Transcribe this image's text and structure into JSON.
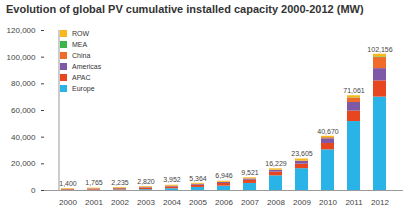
{
  "chart_data": {
    "type": "bar",
    "title": "Evolution of global PV cumulative installed capacity 2000-2012 (MW)",
    "stacked": true,
    "legend": "top-left",
    "grid": false,
    "categories": [
      "2000",
      "2001",
      "2002",
      "2003",
      "2004",
      "2005",
      "2006",
      "2007",
      "2008",
      "2009",
      "2010",
      "2011",
      "2012"
    ],
    "series": [
      {
        "name": "Europe",
        "color": "#29b3e6",
        "values": [
          150,
          260,
          400,
          600,
          1300,
          2300,
          3300,
          5300,
          11000,
          16357,
          30472,
          51716,
          70043
        ]
      },
      {
        "name": "APAC",
        "color": "#e8461e",
        "values": [
          500,
          670,
          880,
          1100,
          1400,
          1700,
          2000,
          2400,
          2800,
          3400,
          4800,
          7800,
          12159
        ]
      },
      {
        "name": "Americas",
        "color": "#7f58a6",
        "values": [
          250,
          300,
          370,
          440,
          500,
          600,
          750,
          900,
          1300,
          2000,
          3500,
          6500,
          9200
        ]
      },
      {
        "name": "China",
        "color": "#f06a2a",
        "values": [
          20,
          30,
          40,
          50,
          60,
          70,
          80,
          100,
          150,
          300,
          800,
          3300,
          8300
        ]
      },
      {
        "name": "MEA",
        "color": "#3bb54a",
        "values": [
          5,
          5,
          5,
          10,
          10,
          10,
          15,
          20,
          30,
          50,
          100,
          200,
          500
        ]
      },
      {
        "name": "ROW",
        "color": "#f9b819",
        "values": [
          475,
          500,
          540,
          620,
          682,
          684,
          801,
          801,
          949,
          1498,
          998,
          1545,
          1954
        ]
      }
    ],
    "totals": [
      1400,
      1765,
      2235,
      2820,
      3952,
      5364,
      6946,
      9521,
      16229,
      23605,
      40670,
      71061,
      102156
    ],
    "total_labels": [
      "1,400",
      "1,765",
      "2,235",
      "2,820",
      "3,952",
      "5,364",
      "6,946",
      "9,521",
      "16,229",
      "23,605",
      "40,670",
      "71,061",
      "102,156"
    ],
    "ylim": [
      0,
      120000
    ],
    "yticks": [
      0,
      {
        "value": 20000,
        "label": "20,000"
      },
      {
        "value": 40000,
        "label": "40,000"
      },
      {
        "value": 60000,
        "label": "60,000"
      },
      {
        "value": 80000,
        "label": "80,000"
      },
      {
        "value": 100000,
        "label": "100,000"
      },
      {
        "value": 120000,
        "label": "120,000"
      }
    ]
  }
}
